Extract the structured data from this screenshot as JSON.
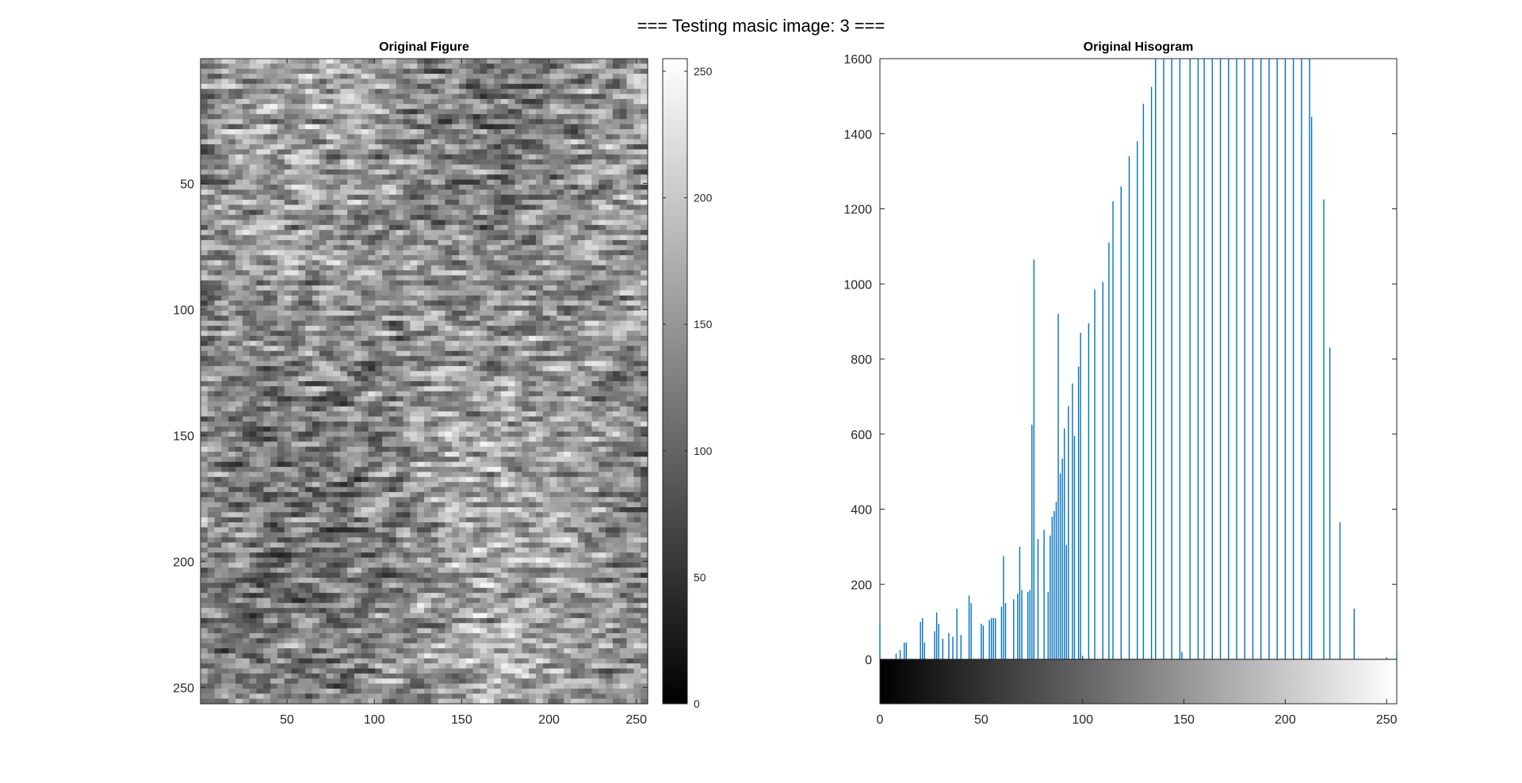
{
  "figure_title": "=== Testing masic image: 3 ===",
  "chart_data": [
    {
      "type": "heatmap",
      "title": "Original Figure",
      "colormap": "gray",
      "xlim": [
        0.5,
        256.5
      ],
      "ylim": [
        0.5,
        256.5
      ],
      "y_reversed": true,
      "x_ticks": [
        50,
        100,
        150,
        200,
        250
      ],
      "y_ticks": [
        50,
        100,
        150,
        200,
        250
      ],
      "colorbar": {
        "range": [
          0,
          255
        ],
        "ticks": [
          0,
          50,
          100,
          150,
          200,
          250
        ]
      }
    },
    {
      "type": "bar",
      "title": "Original Hisogram",
      "color": "#0072BD",
      "xlim": [
        0,
        255
      ],
      "ylim": [
        0,
        1600
      ],
      "x_ticks": [
        0,
        50,
        100,
        150,
        200,
        250
      ],
      "y_ticks": [
        0,
        200,
        400,
        600,
        800,
        1000,
        1200,
        1400,
        1600
      ],
      "colorbar_strip": {
        "range": [
          0,
          255
        ]
      },
      "bins": [
        0,
        8,
        10,
        12,
        13,
        20,
        21,
        22,
        27,
        28,
        29,
        31,
        34,
        36,
        38,
        40,
        44,
        45,
        50,
        51,
        54,
        55,
        56,
        57,
        60,
        61,
        62,
        66,
        68,
        69,
        70,
        73,
        74,
        75,
        76,
        78,
        81,
        83,
        84,
        85,
        86,
        87,
        88,
        89,
        90,
        91,
        92,
        93,
        95,
        96,
        98,
        99,
        100,
        103,
        106,
        110,
        113,
        115,
        119,
        123,
        127,
        130,
        134,
        136,
        140,
        144,
        148,
        149,
        153,
        157,
        160,
        164,
        168,
        172,
        176,
        180,
        184,
        188,
        192,
        196,
        200,
        204,
        208,
        212,
        213,
        219,
        222,
        227,
        234,
        250,
        255
      ],
      "counts": [
        95,
        15,
        25,
        45,
        45,
        100,
        110,
        45,
        75,
        125,
        95,
        55,
        70,
        60,
        135,
        65,
        170,
        150,
        95,
        90,
        105,
        110,
        110,
        110,
        140,
        275,
        150,
        160,
        175,
        300,
        185,
        180,
        185,
        625,
        1065,
        320,
        345,
        180,
        330,
        380,
        395,
        420,
        920,
        495,
        535,
        615,
        305,
        675,
        735,
        595,
        780,
        870,
        10,
        895,
        985,
        1005,
        1110,
        1220,
        1260,
        1340,
        1380,
        1480,
        1525,
        1600,
        1600,
        1600,
        1600,
        20,
        1600,
        1600,
        1600,
        1600,
        1600,
        1600,
        1600,
        1600,
        1600,
        1600,
        1600,
        1600,
        1600,
        1600,
        1600,
        1600,
        1445,
        1225,
        830,
        365,
        135,
        5,
        20
      ]
    }
  ]
}
